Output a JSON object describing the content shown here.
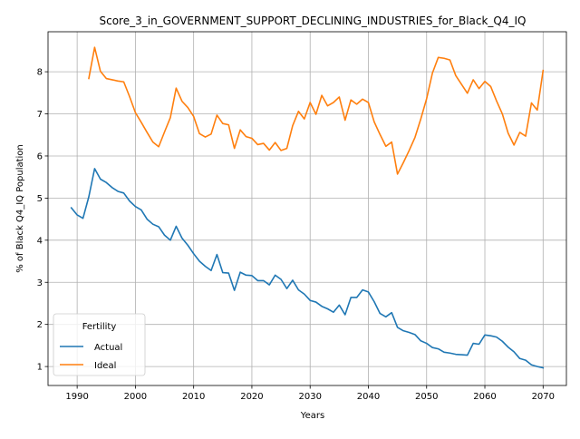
{
  "chart_data": {
    "type": "line",
    "title": "Score_3_in_GOVERNMENT_SUPPORT_DECLINING_INDUSTRIES_for_Black_Q4_IQ",
    "xlabel": "Years",
    "ylabel": "% of Black Q4_IQ Population",
    "xlim": [
      1985,
      2074
    ],
    "ylim": [
      0.55,
      8.95
    ],
    "xticks": [
      1990,
      2000,
      2010,
      2020,
      2030,
      2040,
      2050,
      2060,
      2070
    ],
    "yticks": [
      1,
      2,
      3,
      4,
      5,
      6,
      7,
      8
    ],
    "grid": true,
    "legend": {
      "title": "Fertility",
      "placement": "lower-left"
    },
    "series": [
      {
        "name": "Actual",
        "color": "#1f77b4",
        "x": [
          1989,
          1990,
          1991,
          1992,
          1993,
          1994,
          1995,
          1996,
          1997,
          1998,
          1999,
          2000,
          2001,
          2002,
          2003,
          2004,
          2005,
          2006,
          2007,
          2008,
          2009,
          2010,
          2011,
          2012,
          2013,
          2014,
          2015,
          2016,
          2017,
          2018,
          2019,
          2020,
          2021,
          2022,
          2023,
          2024,
          2025,
          2026,
          2027,
          2028,
          2029,
          2030,
          2031,
          2032,
          2033,
          2034,
          2035,
          2036,
          2037,
          2038,
          2039,
          2040,
          2041,
          2042,
          2043,
          2044,
          2045,
          2046,
          2047,
          2048,
          2049,
          2050,
          2051,
          2052,
          2053,
          2054,
          2055,
          2056,
          2057,
          2058,
          2059,
          2060,
          2061,
          2062,
          2063,
          2064,
          2065,
          2066,
          2067,
          2068,
          2069,
          2070
        ],
        "values": [
          4.77,
          4.6,
          4.52,
          5.03,
          5.7,
          5.45,
          5.37,
          5.25,
          5.16,
          5.12,
          4.93,
          4.8,
          4.72,
          4.5,
          4.38,
          4.32,
          4.12,
          4.0,
          4.33,
          4.05,
          3.88,
          3.68,
          3.5,
          3.38,
          3.28,
          3.66,
          3.23,
          3.22,
          2.81,
          3.24,
          3.17,
          3.16,
          3.04,
          3.04,
          2.94,
          3.17,
          3.07,
          2.85,
          3.05,
          2.82,
          2.72,
          2.57,
          2.53,
          2.43,
          2.37,
          2.29,
          2.46,
          2.23,
          2.64,
          2.64,
          2.82,
          2.77,
          2.54,
          2.26,
          2.18,
          2.28,
          1.93,
          1.85,
          1.81,
          1.76,
          1.61,
          1.55,
          1.45,
          1.42,
          1.34,
          1.32,
          1.29,
          1.28,
          1.27,
          1.55,
          1.53,
          1.75,
          1.73,
          1.7,
          1.6,
          1.46,
          1.35,
          1.19,
          1.15,
          1.04,
          1.0,
          0.97
        ]
      },
      {
        "name": "Ideal",
        "color": "#ff7f0e",
        "x": [
          1992,
          1993,
          1994,
          1995,
          1996,
          1997,
          1998,
          1999,
          2000,
          2001,
          2002,
          2003,
          2004,
          2005,
          2006,
          2007,
          2008,
          2009,
          2010,
          2011,
          2012,
          2013,
          2014,
          2015,
          2016,
          2017,
          2018,
          2019,
          2020,
          2021,
          2022,
          2023,
          2024,
          2025,
          2026,
          2027,
          2028,
          2029,
          2030,
          2031,
          2032,
          2033,
          2034,
          2035,
          2036,
          2037,
          2038,
          2039,
          2040,
          2041,
          2042,
          2043,
          2044,
          2045,
          2046,
          2047,
          2048,
          2049,
          2050,
          2051,
          2052,
          2053,
          2054,
          2055,
          2056,
          2057,
          2058,
          2059,
          2060,
          2061,
          2062,
          2063,
          2064,
          2065,
          2066,
          2067,
          2068,
          2069,
          2070
        ],
        "values": [
          7.84,
          8.58,
          8.01,
          7.84,
          7.81,
          7.78,
          7.76,
          7.41,
          7.03,
          6.8,
          6.56,
          6.33,
          6.22,
          6.57,
          6.91,
          7.61,
          7.3,
          7.15,
          6.94,
          6.53,
          6.45,
          6.52,
          6.97,
          6.77,
          6.74,
          6.18,
          6.62,
          6.46,
          6.42,
          6.27,
          6.3,
          6.14,
          6.32,
          6.13,
          6.18,
          6.72,
          7.06,
          6.88,
          7.27,
          6.99,
          7.44,
          7.19,
          7.27,
          7.4,
          6.85,
          7.33,
          7.23,
          7.35,
          7.27,
          6.81,
          6.51,
          6.23,
          6.33,
          5.57,
          5.84,
          6.13,
          6.44,
          6.88,
          7.36,
          7.97,
          8.34,
          8.32,
          8.28,
          7.91,
          7.7,
          7.49,
          7.81,
          7.6,
          7.77,
          7.65,
          7.31,
          7.0,
          6.54,
          6.26,
          6.56,
          6.47,
          7.26,
          7.09,
          8.03
        ]
      }
    ]
  }
}
